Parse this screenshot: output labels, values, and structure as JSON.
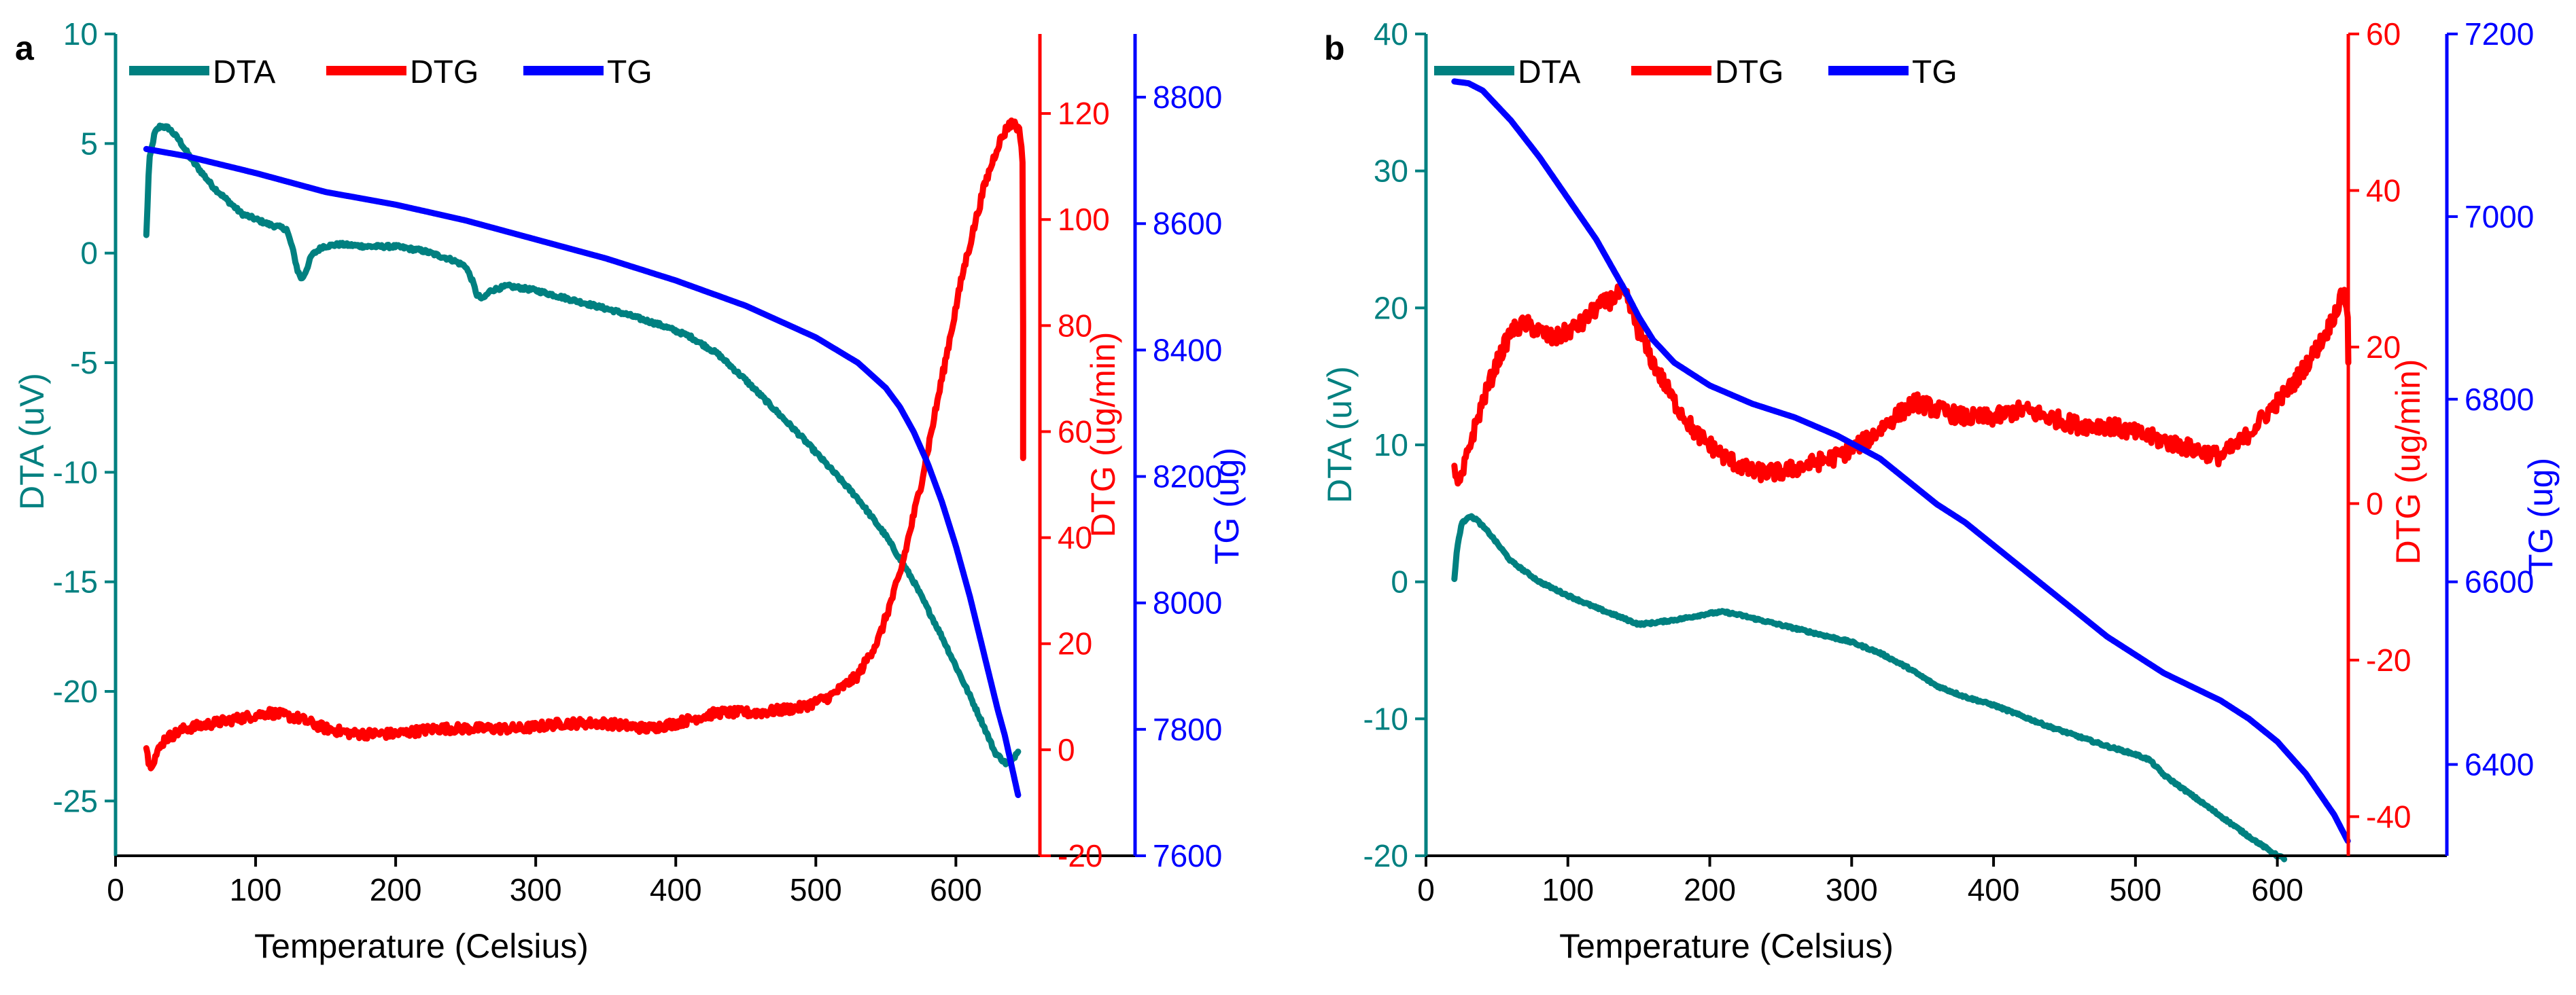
{
  "colors": {
    "dta": "#008080",
    "dtg": "#ff0000",
    "tg": "#0000ff",
    "axis": "#000000"
  },
  "chart_data": [
    {
      "type": "line",
      "panel_label": "a",
      "xlabel": "Temperature (Celsius)",
      "xlim": [
        0,
        660
      ],
      "xticks": [
        0,
        100,
        200,
        300,
        400,
        500,
        600
      ],
      "legend": [
        "DTA",
        "DTG",
        "TG"
      ],
      "legend_position": "top-left",
      "axes": {
        "dta": {
          "label": "DTA (uV)",
          "side": "left",
          "lim": [
            -27.5,
            10
          ],
          "ticks": [
            -25,
            -20,
            -15,
            -10,
            -5,
            0,
            5,
            10
          ]
        },
        "dtg": {
          "label": "DTG (ug/min)",
          "side": "right-inner",
          "lim": [
            -20,
            135
          ],
          "ticks": [
            -20,
            0,
            20,
            40,
            60,
            80,
            100,
            120
          ]
        },
        "tg": {
          "label": "TG (ug)",
          "side": "right-outer",
          "lim": [
            7600,
            8900
          ],
          "ticks": [
            7600,
            7800,
            8000,
            8200,
            8400,
            8600,
            8800
          ]
        }
      },
      "series": [
        {
          "name": "DTA",
          "axis": "dta",
          "noise": 0.08,
          "x": [
            22,
            24,
            28,
            32,
            38,
            45,
            55,
            70,
            90,
            110,
            122,
            126,
            130,
            133,
            136,
            140,
            148,
            160,
            180,
            200,
            220,
            240,
            250,
            255,
            258,
            262,
            268,
            280,
            300,
            330,
            360,
            390,
            410,
            430,
            450,
            470,
            490,
            510,
            530,
            550,
            570,
            590,
            610,
            620,
            628,
            636,
            640,
            645
          ],
          "y": [
            0.8,
            4.2,
            5.5,
            5.8,
            5.7,
            5.2,
            4.2,
            3.0,
            1.8,
            1.3,
            1.1,
            0.3,
            -0.8,
            -1.2,
            -0.8,
            -0.1,
            0.3,
            0.4,
            0.3,
            0.3,
            0.1,
            -0.3,
            -0.6,
            -1.3,
            -1.9,
            -2.1,
            -1.7,
            -1.5,
            -1.7,
            -2.2,
            -2.7,
            -3.3,
            -3.8,
            -4.6,
            -5.8,
            -7.1,
            -8.4,
            -9.8,
            -11.2,
            -12.9,
            -15.0,
            -17.5,
            -20.2,
            -21.6,
            -22.8,
            -23.3,
            -23.2,
            -22.6
          ]
        },
        {
          "name": "DTG",
          "axis": "dtg",
          "noise": 0.9,
          "x": [
            22,
            24,
            27,
            35,
            50,
            70,
            90,
            110,
            130,
            150,
            170,
            200,
            230,
            260,
            290,
            320,
            350,
            380,
            400,
            430,
            460,
            490,
            510,
            530,
            545,
            560,
            575,
            590,
            605,
            620,
            630,
            638,
            643,
            646,
            648,
            648,
            648
          ],
          "y": [
            1,
            -3,
            -2,
            2,
            4,
            5,
            6,
            7,
            6,
            4,
            3,
            3,
            4,
            4,
            4,
            5,
            5,
            4,
            5,
            7,
            7,
            8,
            10,
            14,
            21,
            33,
            50,
            70,
            90,
            106,
            114,
            118,
            118,
            116,
            110,
            80,
            55
          ]
        },
        {
          "name": "TG",
          "axis": "tg",
          "noise": 0,
          "x": [
            22,
            50,
            100,
            150,
            200,
            250,
            300,
            350,
            400,
            450,
            500,
            530,
            550,
            560,
            570,
            580,
            590,
            600,
            610,
            620,
            630,
            635,
            640,
            645
          ],
          "y": [
            8718,
            8707,
            8680,
            8650,
            8630,
            8605,
            8575,
            8545,
            8510,
            8470,
            8420,
            8380,
            8340,
            8310,
            8270,
            8220,
            8160,
            8090,
            8010,
            7920,
            7830,
            7790,
            7740,
            7690
          ]
        }
      ]
    },
    {
      "type": "line",
      "panel_label": "b",
      "xlabel": "Temperature (Celsius)",
      "xlim": [
        0,
        650
      ],
      "xticks": [
        0,
        100,
        200,
        300,
        400,
        500,
        600
      ],
      "legend": [
        "DTA",
        "DTG",
        "TG"
      ],
      "legend_position": "top-left",
      "axes": {
        "dta": {
          "label": "DTA (uV)",
          "side": "left",
          "lim": [
            -20,
            40
          ],
          "ticks": [
            -20,
            -10,
            0,
            10,
            20,
            30,
            40
          ]
        },
        "dtg": {
          "label": "DTG (ug/min)",
          "side": "right-inner",
          "lim": [
            -45,
            60
          ],
          "ticks": [
            -40,
            -20,
            0,
            20,
            40,
            60
          ]
        },
        "tg": {
          "label": "TG (ug)",
          "side": "right-outer",
          "lim": [
            6300,
            7200
          ],
          "ticks": [
            6400,
            6600,
            6800,
            7000,
            7200
          ]
        }
      },
      "series": [
        {
          "name": "DTA",
          "axis": "dta",
          "noise": 0.08,
          "x": [
            20,
            22,
            25,
            30,
            35,
            45,
            60,
            80,
            100,
            120,
            140,
            150,
            160,
            180,
            200,
            210,
            220,
            240,
            260,
            280,
            300,
            320,
            340,
            360,
            380,
            400,
            420,
            440,
            460,
            480,
            500,
            510,
            520,
            540,
            560,
            580,
            600,
            605
          ],
          "y": [
            0.2,
            2.5,
            4.2,
            4.8,
            4.6,
            3.5,
            1.5,
            0.0,
            -1.0,
            -1.9,
            -2.7,
            -3.1,
            -3.0,
            -2.7,
            -2.3,
            -2.2,
            -2.4,
            -2.9,
            -3.4,
            -3.9,
            -4.4,
            -5.2,
            -6.3,
            -7.6,
            -8.4,
            -9.0,
            -9.8,
            -10.6,
            -11.3,
            -12.0,
            -12.6,
            -13.0,
            -14.1,
            -15.6,
            -17.1,
            -18.6,
            -20.0,
            -20.2
          ]
        },
        {
          "name": "DTG",
          "axis": "dtg",
          "noise": 1.1,
          "x": [
            20,
            22,
            25,
            30,
            40,
            50,
            60,
            70,
            80,
            90,
            100,
            110,
            120,
            130,
            138,
            142,
            150,
            160,
            175,
            190,
            210,
            230,
            250,
            270,
            290,
            310,
            330,
            345,
            360,
            380,
            400,
            420,
            440,
            460,
            480,
            500,
            520,
            540,
            560,
            575,
            590,
            610,
            625,
            635,
            642,
            647,
            650,
            650
          ],
          "y": [
            5,
            2,
            3,
            7,
            13,
            18,
            22,
            23,
            22,
            21,
            22,
            23,
            25,
            26,
            27,
            26,
            22,
            18,
            13,
            9,
            6,
            4,
            4,
            5,
            6,
            8,
            11,
            13,
            12,
            11,
            11,
            12,
            11,
            10,
            10,
            9,
            8,
            7,
            6,
            8,
            11,
            15,
            19,
            22,
            25,
            27,
            24,
            18
          ]
        },
        {
          "name": "TG",
          "axis": "tg",
          "noise": 0,
          "x": [
            20,
            30,
            40,
            60,
            80,
            100,
            120,
            140,
            150,
            160,
            175,
            200,
            230,
            260,
            290,
            320,
            340,
            360,
            380,
            400,
            420,
            440,
            460,
            480,
            500,
            520,
            540,
            560,
            580,
            600,
            620,
            640,
            650
          ],
          "y": [
            7148,
            7146,
            7138,
            7105,
            7065,
            7020,
            6975,
            6920,
            6890,
            6865,
            6840,
            6815,
            6795,
            6780,
            6760,
            6735,
            6710,
            6685,
            6665,
            6640,
            6615,
            6590,
            6565,
            6540,
            6520,
            6500,
            6485,
            6470,
            6450,
            6425,
            6390,
            6345,
            6315
          ]
        }
      ]
    }
  ]
}
